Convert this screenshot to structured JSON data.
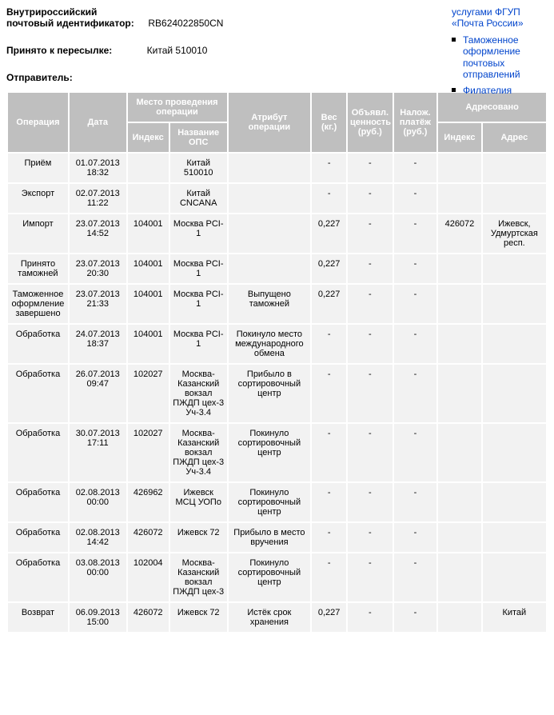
{
  "header": {
    "id_label": "Внутрироссийский почтовый идентификатор:",
    "id_value": "RB624022850CN",
    "accepted_label": "Принято к пересылке:",
    "accepted_value": "Китай 510010",
    "sender_label": "Отправитель:"
  },
  "sidelinks": {
    "l0": "услугами ФГУП «Почта России»",
    "l1": "Таможенное оформление почтовых отправлений",
    "l2": "Филателия"
  },
  "columns": {
    "operation": "Операция",
    "date": "Дата",
    "place_group": "Место проведения операции",
    "index": "Индекс",
    "ops": "Название ОПС",
    "attr": "Атрибут операции",
    "weight": "Вес (кг.)",
    "value": "Объявл. ценность (руб.)",
    "pay": "Налож. платёж (руб.)",
    "addr_group": "Адресовано",
    "aindex": "Индекс",
    "addr": "Адрес"
  },
  "rows": [
    {
      "op": "Приём",
      "date": "01.07.2013 18:32",
      "idx": "",
      "ops": "Китай 510010",
      "attr": "",
      "wt": "-",
      "val": "-",
      "pay": "-",
      "aidx": "",
      "addr": ""
    },
    {
      "op": "Экспорт",
      "date": "02.07.2013 11:22",
      "idx": "",
      "ops": "Китай CNCANA",
      "attr": "",
      "wt": "-",
      "val": "-",
      "pay": "-",
      "aidx": "",
      "addr": ""
    },
    {
      "op": "Импорт",
      "date": "23.07.2013 14:52",
      "idx": "104001",
      "ops": "Москва PCI-1",
      "attr": "",
      "wt": "0,227",
      "val": "-",
      "pay": "-",
      "aidx": "426072",
      "addr": "Ижевск, Удмуртская респ."
    },
    {
      "op": "Принято таможней",
      "date": "23.07.2013 20:30",
      "idx": "104001",
      "ops": "Москва PCI-1",
      "attr": "",
      "wt": "0,227",
      "val": "-",
      "pay": "-",
      "aidx": "",
      "addr": ""
    },
    {
      "op": "Таможенное оформление завершено",
      "date": "23.07.2013 21:33",
      "idx": "104001",
      "ops": "Москва PCI-1",
      "attr": "Выпущено таможней",
      "wt": "0,227",
      "val": "-",
      "pay": "-",
      "aidx": "",
      "addr": ""
    },
    {
      "op": "Обработка",
      "date": "24.07.2013 18:37",
      "idx": "104001",
      "ops": "Москва PCI-1",
      "attr": "Покинуло место международного обмена",
      "wt": "-",
      "val": "-",
      "pay": "-",
      "aidx": "",
      "addr": ""
    },
    {
      "op": "Обработка",
      "date": "26.07.2013 09:47",
      "idx": "102027",
      "ops": "Москва-Казанский вокзал ПЖДП цех-3 Уч-3.4",
      "attr": "Прибыло в сортировочный центр",
      "wt": "-",
      "val": "-",
      "pay": "-",
      "aidx": "",
      "addr": ""
    },
    {
      "op": "Обработка",
      "date": "30.07.2013 17:11",
      "idx": "102027",
      "ops": "Москва-Казанский вокзал ПЖДП цех-3 Уч-3.4",
      "attr": "Покинуло сортировочный центр",
      "wt": "-",
      "val": "-",
      "pay": "-",
      "aidx": "",
      "addr": ""
    },
    {
      "op": "Обработка",
      "date": "02.08.2013 00:00",
      "idx": "426962",
      "ops": "Ижевск МСЦ УОПо",
      "attr": "Покинуло сортировочный центр",
      "wt": "-",
      "val": "-",
      "pay": "-",
      "aidx": "",
      "addr": ""
    },
    {
      "op": "Обработка",
      "date": "02.08.2013 14:42",
      "idx": "426072",
      "ops": "Ижевск 72",
      "attr": "Прибыло в место вручения",
      "wt": "-",
      "val": "-",
      "pay": "-",
      "aidx": "",
      "addr": ""
    },
    {
      "op": "Обработка",
      "date": "03.08.2013 00:00",
      "idx": "102004",
      "ops": "Москва-Казанский вокзал ПЖДП цех-3",
      "attr": "Покинуло сортировочный центр",
      "wt": "-",
      "val": "-",
      "pay": "-",
      "aidx": "",
      "addr": ""
    },
    {
      "op": "Возврат",
      "date": "06.09.2013 15:00",
      "idx": "426072",
      "ops": "Ижевск 72",
      "attr": "Истёк срок хранения",
      "wt": "0,227",
      "val": "-",
      "pay": "-",
      "aidx": "",
      "addr": "Китай"
    }
  ]
}
